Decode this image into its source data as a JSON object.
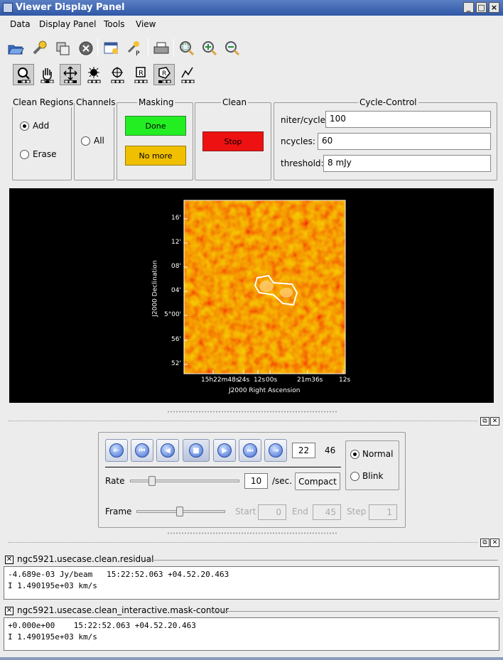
{
  "window": {
    "title": "Viewer Display Panel"
  },
  "menubar": [
    "Data",
    "Display Panel",
    "Tools",
    "View"
  ],
  "toolbar": {
    "file_icons": [
      "open-folder-icon",
      "wrench-icon",
      "copy-panel-icon",
      "close-circle-icon",
      "new-panel-icon",
      "print-setup-icon",
      "printer-icon",
      "zoom-fit-icon",
      "zoom-in-icon",
      "zoom-out-icon"
    ],
    "mouse_tools": [
      "zoom-tool-icon",
      "pan-hand-icon",
      "move-arrows-icon",
      "contrast-tool-icon",
      "crosshair-tool-icon",
      "rectangle-region-icon",
      "polygon-region-icon",
      "polyline-tool-icon"
    ]
  },
  "clean_regions": {
    "title": "Clean Regions",
    "add": "Add",
    "erase": "Erase",
    "selected": "Add"
  },
  "channels": {
    "title": "Channels",
    "all": "All"
  },
  "masking": {
    "title": "Masking",
    "done": "Done",
    "no_more": "No more"
  },
  "clean": {
    "title": "Clean",
    "stop": "Stop"
  },
  "cycle_control": {
    "title": "Cycle-Control",
    "niter_label": "niter/cycle:",
    "niter_value": "100",
    "ncycles_label": "ncycles:",
    "ncycles_value": "60",
    "threshold_label": "threshold:",
    "threshold_value": "8 mJy"
  },
  "image": {
    "ylabel": "J2000 Declination",
    "xlabel": "J2000 Right Ascension",
    "yticks": [
      "16'",
      "12'",
      "08'",
      "04'",
      "5°00'",
      "56'",
      "52'"
    ],
    "xticks": [
      "15h22m48s",
      "24s",
      "12s",
      "00s",
      "21m36s",
      "12s"
    ]
  },
  "animator": {
    "current_frame": "22",
    "total_frames": "46",
    "mode_normal": "Normal",
    "mode_blink": "Blink",
    "mode_selected": "Normal",
    "rate_label": "Rate",
    "rate_value": "10",
    "rate_unit": "/sec.",
    "compact_label": "Compact",
    "frame_label": "Frame",
    "start_label": "Start",
    "start_value": "0",
    "end_label": "End",
    "end_value": "45",
    "step_label": "Step",
    "step_value": "1",
    "rate_slider_fraction": 0.2,
    "frame_slider_fraction": 0.49,
    "buttons": [
      "to-start-icon",
      "step-back-icon",
      "play-backward-icon",
      "stop-icon",
      "play-forward-icon",
      "step-forward-icon",
      "to-end-icon"
    ]
  },
  "panels": [
    {
      "title": "ngc5921.usecase.clean.residual",
      "line1": "-4.689e-03 Jy/beam   15:22:52.063 +04.52.20.463",
      "line2": "I 1.490195e+03 km/s"
    },
    {
      "title": "ngc5921.usecase.clean_interactive.mask-contour",
      "line1": "+0.000e+00    15:22:52.063 +04.52.20.463",
      "line2": "I 1.490195e+03 km/s"
    }
  ]
}
